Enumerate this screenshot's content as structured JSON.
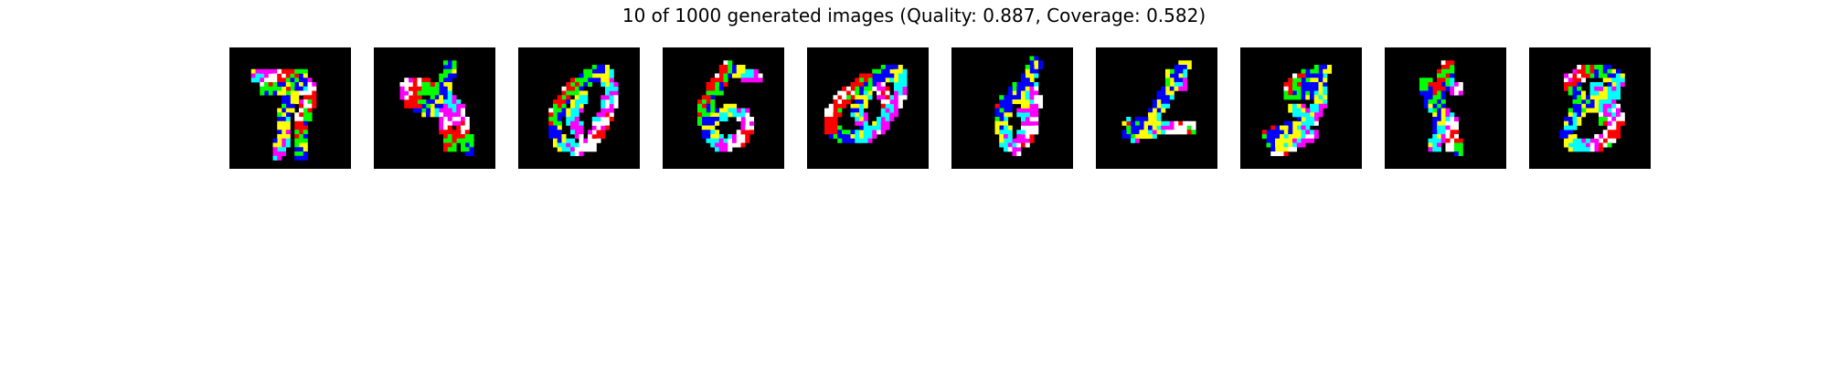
{
  "title": "10 of 1000 generated images (Quality: 0.887, Coverage: 0.582)",
  "images": [
    {
      "name": "generated-image-1",
      "digit_like": "7"
    },
    {
      "name": "generated-image-2",
      "digit_like": "4"
    },
    {
      "name": "generated-image-3",
      "digit_like": "0"
    },
    {
      "name": "generated-image-4",
      "digit_like": "6"
    },
    {
      "name": "generated-image-5",
      "digit_like": "0"
    },
    {
      "name": "generated-image-6",
      "digit_like": "8"
    },
    {
      "name": "generated-image-7",
      "digit_like": "2"
    },
    {
      "name": "generated-image-8",
      "digit_like": "2"
    },
    {
      "name": "generated-image-9",
      "digit_like": "1"
    },
    {
      "name": "generated-image-10",
      "digit_like": "3"
    }
  ],
  "palette": {
    "background": "#000000",
    "red": "#ff0000",
    "green": "#00ff00",
    "blue": "#0000ff",
    "yellow": "#ffff00",
    "cyan": "#00ffff",
    "magenta": "#ff00ff",
    "white": "#ffffff"
  }
}
